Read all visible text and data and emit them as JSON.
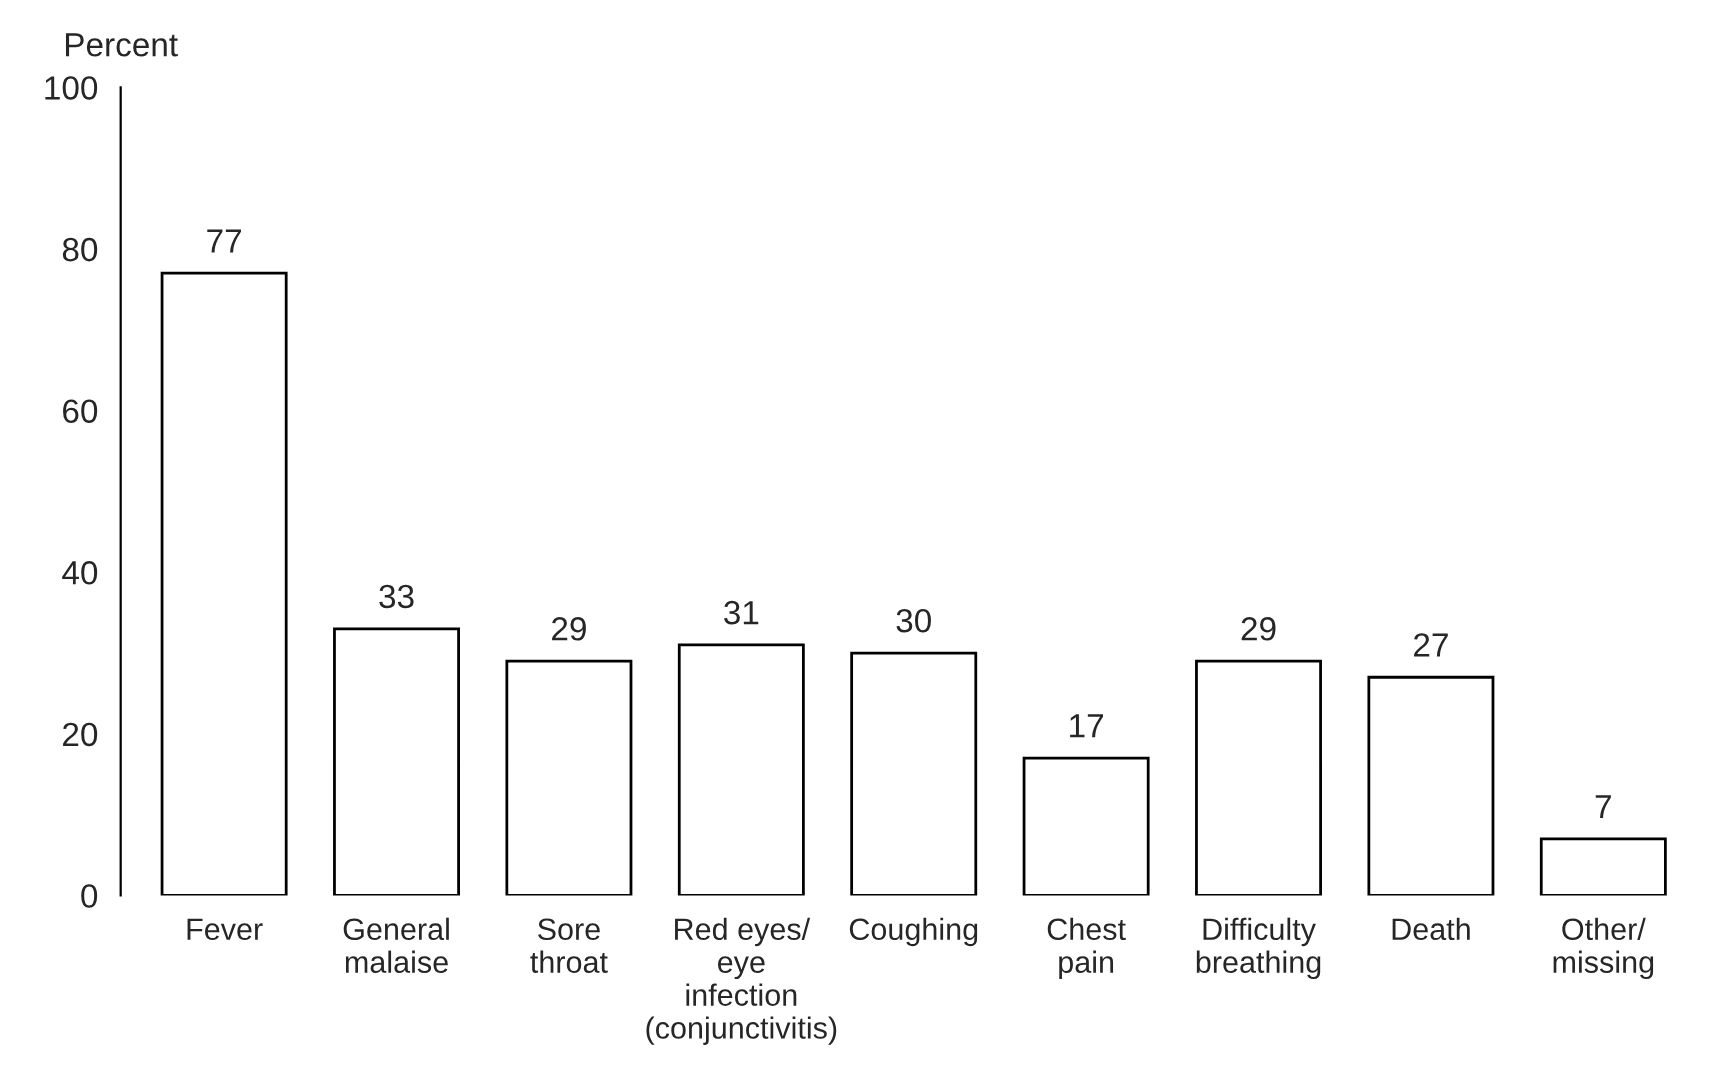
{
  "chart_data": {
    "type": "bar",
    "ylabel": "Percent",
    "categories": [
      "Fever",
      "General\nmalaise",
      "Sore\nthroat",
      "Red eyes/\neye\ninfection\n(conjunctivitis)",
      "Coughing",
      "Chest\npain",
      "Difficulty\nbreathing",
      "Death",
      "Other/\nmissing"
    ],
    "values": [
      77,
      33,
      29,
      31,
      30,
      17,
      29,
      27,
      7
    ],
    "color": "#ffffff",
    "ylim": [
      0,
      100
    ],
    "yticks": [
      0,
      20,
      40,
      60,
      80,
      100
    ],
    "data_labels": true,
    "grid": false,
    "legend": false
  }
}
